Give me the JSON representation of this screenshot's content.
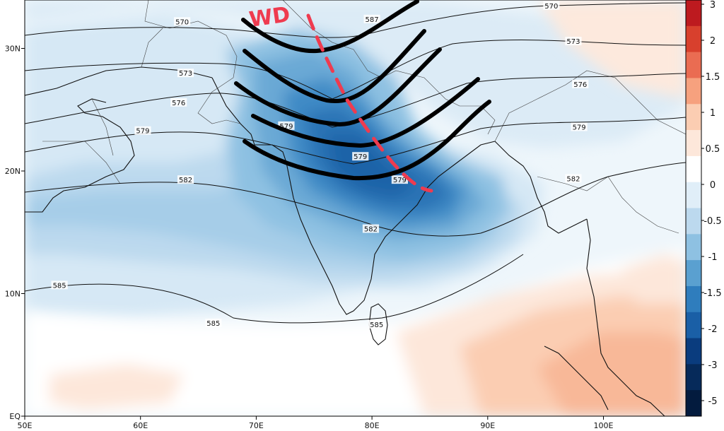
{
  "annotation": {
    "label": "WD"
  },
  "axes": {
    "lon_ticks": [
      "50E",
      "60E",
      "70E",
      "80E",
      "90E",
      "100E"
    ],
    "lat_ticks": [
      "30N",
      "20N",
      "10N",
      "EQ"
    ]
  },
  "contours": [
    {
      "value": "570"
    },
    {
      "value": "573"
    },
    {
      "value": "576"
    },
    {
      "value": "579"
    },
    {
      "value": "582"
    },
    {
      "value": "585"
    }
  ],
  "contour_labels": [
    {
      "text": "570",
      "lon": 63.6,
      "lat": 32.2
    },
    {
      "text": "570",
      "lon": 95.5,
      "lat": 33.5
    },
    {
      "text": "573",
      "lon": 63.9,
      "lat": 28.0
    },
    {
      "text": "573",
      "lon": 97.4,
      "lat": 30.6
    },
    {
      "text": "576",
      "lon": 63.3,
      "lat": 25.6
    },
    {
      "text": "576",
      "lon": 98.0,
      "lat": 27.1
    },
    {
      "text": "579",
      "lon": 60.2,
      "lat": 23.3
    },
    {
      "text": "579",
      "lon": 97.9,
      "lat": 23.6
    },
    {
      "text": "579",
      "lon": 72.6,
      "lat": 23.7
    },
    {
      "text": "579",
      "lon": 79.0,
      "lat": 21.2
    },
    {
      "text": "579",
      "lon": 82.4,
      "lat": 19.3
    },
    {
      "text": "582",
      "lon": 63.9,
      "lat": 19.3
    },
    {
      "text": "582",
      "lon": 97.4,
      "lat": 19.4
    },
    {
      "text": "582",
      "lon": 79.9,
      "lat": 15.3
    },
    {
      "text": "585",
      "lon": 53.0,
      "lat": 10.7
    },
    {
      "text": "585",
      "lon": 66.3,
      "lat": 7.6
    },
    {
      "text": "585",
      "lon": 80.4,
      "lat": 7.5
    },
    {
      "text": "587",
      "lon": 80.0,
      "lat": 32.4
    }
  ],
  "colorbar": {
    "labels": [
      "3",
      "2",
      "1.5",
      "1",
      "0.5",
      "0",
      "-0.5",
      "-1",
      "-1.5",
      "-2",
      "-3",
      "-5"
    ],
    "colors": [
      "#bd1a1f",
      "#d8402d",
      "#ea6c52",
      "#f6a17e",
      "#fbcdb2",
      "#fde7da",
      "#ffffff",
      "#e0eef8",
      "#bcd9ee",
      "#8ec1e2",
      "#5aa0d0",
      "#2f7dbd",
      "#1a5fa6",
      "#0a3c7e",
      "#062a5a",
      "#031b3e"
    ]
  }
}
